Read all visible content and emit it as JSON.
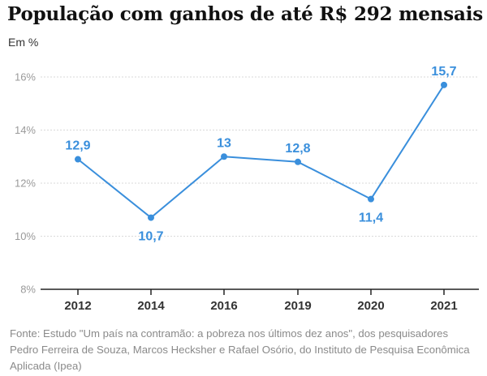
{
  "header": {
    "title": "População com ganhos de até R$ 292 mensais",
    "unit": "Em %"
  },
  "source": "Fonte: Estudo \"Um país na contramão: a pobreza nos últimos dez anos\", dos pesquisadores Pedro Ferreira de Souza, Marcos Hecksher e Rafael Osório, do Instituto de Pesquisa Econômica Aplicada (Ipea)",
  "chart_data": {
    "type": "line",
    "title": "População com ganhos de até R$ 292 mensais",
    "ylabel": "Em %",
    "categories": [
      "2012",
      "2014",
      "2016",
      "2019",
      "2020",
      "2021"
    ],
    "series": [
      {
        "values": [
          12.9,
          10.7,
          13,
          12.8,
          11.4,
          15.7
        ],
        "labels": [
          "12,9",
          "10,7",
          "13",
          "12,8",
          "11,4",
          "15,7"
        ],
        "label_position": [
          "above",
          "below",
          "above",
          "above",
          "below",
          "above"
        ]
      }
    ],
    "ylim": [
      8,
      16
    ],
    "yticks": [
      8,
      10,
      12,
      14,
      16
    ],
    "ytick_labels": [
      "8%",
      "10%",
      "12%",
      "14%",
      "16%"
    ],
    "grid": true,
    "line_color": "#3a8fdc",
    "axis_color": "#222222",
    "grid_color": "#d9d9d9"
  }
}
